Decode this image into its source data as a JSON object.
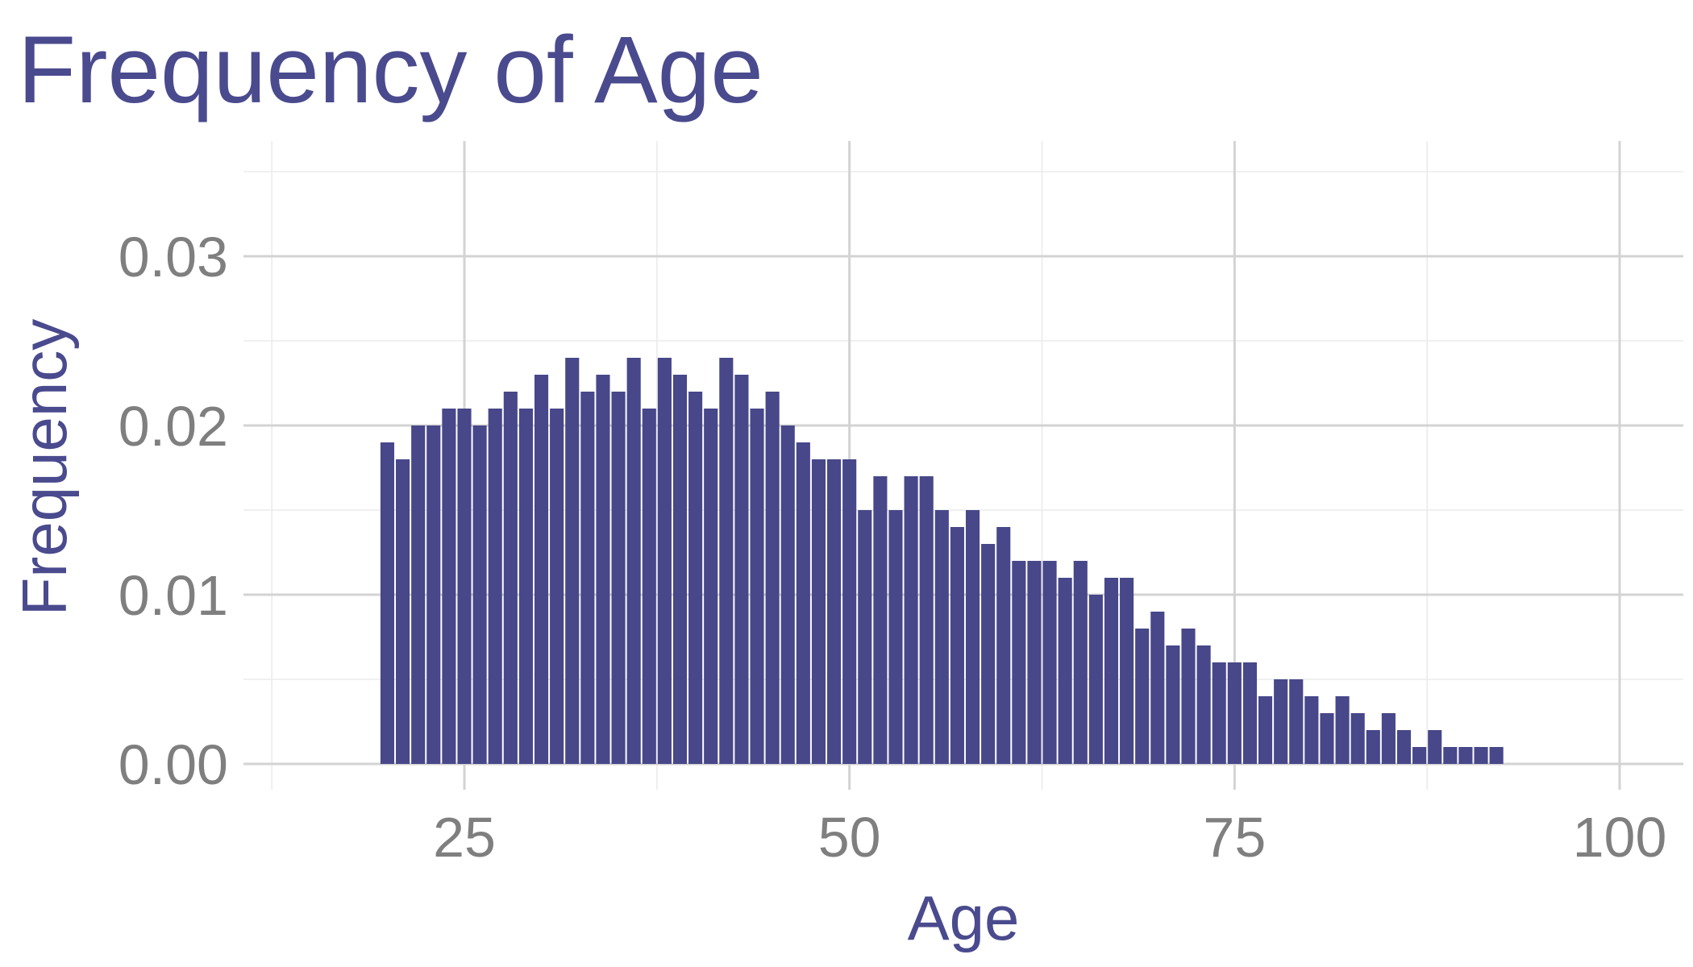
{
  "chart_data": {
    "type": "bar",
    "title": "Frequency of Age",
    "xlabel": "Age",
    "ylabel": "Frequency",
    "xlim": [
      12.5,
      101.5
    ],
    "ylim": [
      0,
      0.035
    ],
    "x_ticks": [
      25,
      50,
      75,
      100
    ],
    "y_ticks": [
      0.0,
      0.01,
      0.02,
      0.03
    ],
    "x_tick_labels": [
      "25",
      "50",
      "75",
      "100"
    ],
    "y_tick_labels": [
      "0.00",
      "0.01",
      "0.02",
      "0.03"
    ],
    "grid": true,
    "bar_color": "#47478a",
    "bars": [
      {
        "x": 20,
        "y": 0.019
      },
      {
        "x": 21,
        "y": 0.018
      },
      {
        "x": 22,
        "y": 0.02
      },
      {
        "x": 23,
        "y": 0.02
      },
      {
        "x": 24,
        "y": 0.021
      },
      {
        "x": 25,
        "y": 0.021
      },
      {
        "x": 26,
        "y": 0.02
      },
      {
        "x": 27,
        "y": 0.021
      },
      {
        "x": 28,
        "y": 0.022
      },
      {
        "x": 29,
        "y": 0.021
      },
      {
        "x": 30,
        "y": 0.023
      },
      {
        "x": 31,
        "y": 0.021
      },
      {
        "x": 32,
        "y": 0.024
      },
      {
        "x": 33,
        "y": 0.022
      },
      {
        "x": 34,
        "y": 0.023
      },
      {
        "x": 35,
        "y": 0.022
      },
      {
        "x": 36,
        "y": 0.024
      },
      {
        "x": 37,
        "y": 0.021
      },
      {
        "x": 38,
        "y": 0.024
      },
      {
        "x": 39,
        "y": 0.023
      },
      {
        "x": 40,
        "y": 0.022
      },
      {
        "x": 41,
        "y": 0.021
      },
      {
        "x": 42,
        "y": 0.024
      },
      {
        "x": 43,
        "y": 0.023
      },
      {
        "x": 44,
        "y": 0.021
      },
      {
        "x": 45,
        "y": 0.022
      },
      {
        "x": 46,
        "y": 0.02
      },
      {
        "x": 47,
        "y": 0.019
      },
      {
        "x": 48,
        "y": 0.018
      },
      {
        "x": 49,
        "y": 0.018
      },
      {
        "x": 50,
        "y": 0.018
      },
      {
        "x": 51,
        "y": 0.015
      },
      {
        "x": 52,
        "y": 0.017
      },
      {
        "x": 53,
        "y": 0.015
      },
      {
        "x": 54,
        "y": 0.017
      },
      {
        "x": 55,
        "y": 0.017
      },
      {
        "x": 56,
        "y": 0.015
      },
      {
        "x": 57,
        "y": 0.014
      },
      {
        "x": 58,
        "y": 0.015
      },
      {
        "x": 59,
        "y": 0.013
      },
      {
        "x": 60,
        "y": 0.014
      },
      {
        "x": 61,
        "y": 0.012
      },
      {
        "x": 62,
        "y": 0.012
      },
      {
        "x": 63,
        "y": 0.012
      },
      {
        "x": 64,
        "y": 0.011
      },
      {
        "x": 65,
        "y": 0.012
      },
      {
        "x": 66,
        "y": 0.01
      },
      {
        "x": 67,
        "y": 0.011
      },
      {
        "x": 68,
        "y": 0.011
      },
      {
        "x": 69,
        "y": 0.008
      },
      {
        "x": 70,
        "y": 0.009
      },
      {
        "x": 71,
        "y": 0.007
      },
      {
        "x": 72,
        "y": 0.008
      },
      {
        "x": 73,
        "y": 0.007
      },
      {
        "x": 74,
        "y": 0.006
      },
      {
        "x": 75,
        "y": 0.006
      },
      {
        "x": 76,
        "y": 0.006
      },
      {
        "x": 77,
        "y": 0.004
      },
      {
        "x": 78,
        "y": 0.005
      },
      {
        "x": 79,
        "y": 0.005
      },
      {
        "x": 80,
        "y": 0.004
      },
      {
        "x": 81,
        "y": 0.003
      },
      {
        "x": 82,
        "y": 0.004
      },
      {
        "x": 83,
        "y": 0.003
      },
      {
        "x": 84,
        "y": 0.002
      },
      {
        "x": 85,
        "y": 0.003
      },
      {
        "x": 86,
        "y": 0.002
      },
      {
        "x": 87,
        "y": 0.001
      },
      {
        "x": 88,
        "y": 0.002
      },
      {
        "x": 89,
        "y": 0.001
      },
      {
        "x": 90,
        "y": 0.001
      },
      {
        "x": 91,
        "y": 0.001
      },
      {
        "x": 92,
        "y": 0.001
      }
    ]
  }
}
